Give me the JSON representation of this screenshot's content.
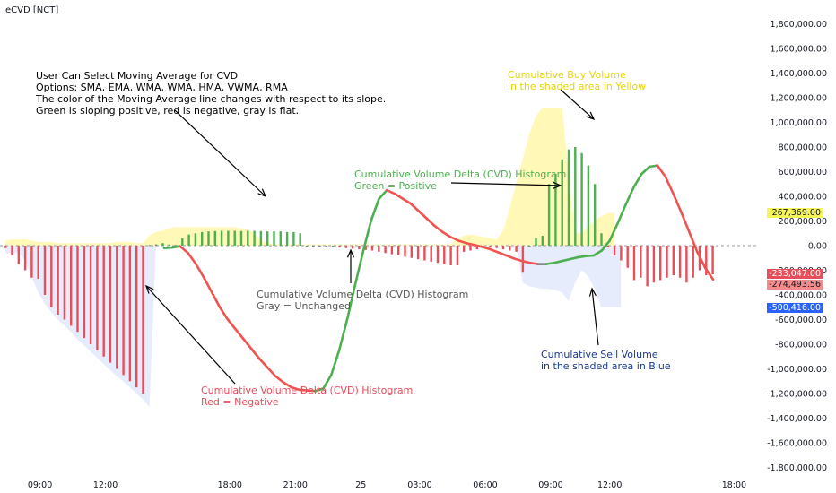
{
  "title": "eCVD [NCT]",
  "chart_data": {
    "type": "bar",
    "title": "eCVD [NCT]",
    "ylim": [
      -1800000,
      1800000
    ],
    "y_ticks": [
      "1,800,000.00",
      "1,600,000.00",
      "1,400,000.00",
      "1,200,000.00",
      "1,000,000.00",
      "800,000.00",
      "600,000.00",
      "400,000.00",
      "200,000.00",
      "0.00",
      "-200,000.00",
      "-400,000.00",
      "-600,000.00",
      "-800,000.00",
      "-1,000,000.00",
      "-1,200,000.00",
      "-1,400,000.00",
      "-1,600,000.00",
      "-1,800,000.00"
    ],
    "y_tick_values": [
      1800000,
      1600000,
      1400000,
      1200000,
      1000000,
      800000,
      600000,
      400000,
      200000,
      0,
      -200000,
      -400000,
      -600000,
      -800000,
      -1000000,
      -1200000,
      -1400000,
      -1600000,
      -1800000
    ],
    "x_ticks": [
      {
        "label": "09:00",
        "bar": 2
      },
      {
        "label": "12:00",
        "bar": 12
      },
      {
        "label": "18:00",
        "bar": 31
      },
      {
        "label": "21:00",
        "bar": 41
      },
      {
        "label": "25",
        "bar": 51
      },
      {
        "label": "03:00",
        "bar": 60
      },
      {
        "label": "06:00",
        "bar": 70
      },
      {
        "label": "09:00",
        "bar": 80
      },
      {
        "label": "12:00",
        "bar": 89
      },
      {
        "label": "18:00",
        "bar": 108
      }
    ],
    "histogram": {
      "values": [
        -20000,
        -80000,
        -150000,
        -200000,
        -260000,
        -270000,
        -400000,
        -500000,
        -560000,
        -600000,
        -650000,
        -700000,
        -750000,
        -800000,
        -850000,
        -900000,
        -950000,
        -1000000,
        -1050000,
        -1100000,
        -1150000,
        -1200000,
        5000,
        10000,
        20000,
        10000,
        5000,
        60000,
        90000,
        100000,
        110000,
        115000,
        118000,
        120000,
        120000,
        120000,
        118000,
        120000,
        120000,
        118000,
        115000,
        115000,
        115000,
        110000,
        110000,
        100000,
        0,
        -5000,
        -5000,
        -8000,
        -10000,
        -15000,
        -20000,
        -25000,
        -30000,
        -35000,
        -40000,
        -50000,
        -60000,
        -70000,
        -80000,
        -90000,
        -100000,
        -110000,
        -120000,
        -130000,
        -140000,
        -150000,
        -160000,
        -160000,
        -50000,
        -40000,
        -30000,
        -20000,
        -15000,
        -20000,
        -30000,
        -40000,
        -50000,
        -220000,
        0,
        60000,
        80000,
        500000,
        580000,
        700000,
        780000,
        800000,
        750000,
        650000,
        500000,
        100000,
        -10000,
        -80000,
        -120000,
        -180000,
        -280000,
        -260000,
        -330000,
        -300000,
        -280000,
        -260000,
        -240000,
        -260000,
        -300000,
        -260000,
        -200000,
        -240000,
        -233047
      ],
      "colors": {
        "positive": "#4caf50",
        "negative": "#e84d5a",
        "unchanged": "#787b86"
      }
    },
    "ma_line": {
      "values": [
        -20000,
        -15000,
        -5000,
        -60000,
        -150000,
        -260000,
        -380000,
        -500000,
        -600000,
        -680000,
        -760000,
        -840000,
        -920000,
        -990000,
        -1060000,
        -1110000,
        -1150000,
        -1170000,
        -1175000,
        -1180000,
        -1160000,
        -1050000,
        -850000,
        -600000,
        -320000,
        -50000,
        200000,
        380000,
        450000,
        420000,
        380000,
        340000,
        280000,
        220000,
        160000,
        110000,
        70000,
        40000,
        20000,
        5000,
        -10000,
        -30000,
        -55000,
        -80000,
        -105000,
        -125000,
        -140000,
        -150000,
        -150000,
        -140000,
        -125000,
        -110000,
        -95000,
        -85000,
        -80000,
        -40000,
        40000,
        180000,
        330000,
        470000,
        580000,
        640000,
        650000,
        560000,
        420000,
        270000,
        110000,
        -50000,
        -180000,
        -274494
      ],
      "start_bar": 40,
      "colors": {
        "up": "#4caf50",
        "down": "#f05350",
        "flat": "#787b86"
      }
    },
    "buy_volume_area": {
      "color": "#fff59d",
      "values": [
        40000,
        50000,
        50000,
        50000,
        40000,
        30000,
        30000,
        30000,
        20000,
        20000,
        20000,
        20000,
        20000,
        20000,
        20000,
        20000,
        20000,
        30000,
        30000,
        30000,
        20000,
        20000,
        80000,
        110000,
        120000,
        140000,
        150000,
        150000,
        150000,
        150000,
        150000,
        150000,
        150000,
        150000,
        150000,
        150000,
        140000,
        130000,
        100000,
        40000,
        20000,
        10000,
        10000,
        10000,
        10000,
        10000,
        10000,
        10000,
        10000,
        10000,
        10000,
        10000,
        10000,
        10000,
        10000,
        10000,
        10000,
        10000,
        10000,
        10000,
        10000,
        10000,
        10000,
        10000,
        10000,
        10000,
        10000,
        10000,
        10000,
        50000,
        80000,
        90000,
        80000,
        70000,
        60000,
        50000,
        120000,
        300000,
        500000,
        700000,
        900000,
        1050000,
        1120000,
        1120000,
        1120000,
        1120000,
        600000,
        100000,
        100000,
        150000,
        200000,
        240000,
        260000,
        267369
      ]
    },
    "sell_volume_area": {
      "color": "#dde6fb",
      "values": [
        -60000,
        -60000,
        -60000,
        -120000,
        -250000,
        -380000,
        -470000,
        -540000,
        -600000,
        -650000,
        -700000,
        -760000,
        -810000,
        -860000,
        -910000,
        -960000,
        -1010000,
        -1060000,
        -1100000,
        -1150000,
        -1200000,
        -1250000,
        -1310000,
        0,
        0,
        0,
        0,
        0,
        0,
        0,
        0,
        0,
        0,
        0,
        0,
        0,
        0,
        0,
        0,
        0,
        0,
        0,
        0,
        0,
        0,
        0,
        0,
        0,
        0,
        0,
        0,
        0,
        0,
        0,
        0,
        0,
        0,
        0,
        0,
        0,
        0,
        0,
        0,
        0,
        0,
        0,
        0,
        0,
        0,
        0,
        0,
        0,
        0,
        0,
        0,
        0,
        0,
        0,
        0,
        -300000,
        -330000,
        -340000,
        -350000,
        -350000,
        -360000,
        -380000,
        -450000,
        -300000,
        -200000,
        -250000,
        -350000,
        -500000,
        -500000,
        -500000,
        -500416
      ]
    },
    "current_values": [
      {
        "label": "267,369.00",
        "value": 267369,
        "bg": "#f5f55a",
        "fg": "#131722"
      },
      {
        "label": "-233,047.00",
        "value": -233047,
        "bg": "#e84d5a",
        "fg": "#ffffff"
      },
      {
        "label": "-274,493.56",
        "value": -274494,
        "bg": "#f58b8b",
        "fg": "#131722"
      },
      {
        "label": "-500,416.00",
        "value": -500416,
        "bg": "#2962ff",
        "fg": "#ffffff"
      }
    ]
  },
  "annotations": {
    "ma_note": {
      "lines": [
        "User Can Select Moving Average for CVD",
        "Options: SMA, EMA, WMA, WMA, HMA, VWMA, RMA",
        "The color of the Moving Average line changes with respect to its slope.",
        "Green is sloping positive, red is negative, gray is flat."
      ],
      "color": "#000000"
    },
    "buy_note": {
      "lines": [
        "Cumulative Buy Volume",
        "in the shaded area in Yellow"
      ],
      "color": "#e8d400"
    },
    "green_note": {
      "lines": [
        "Cumulative Volume Delta (CVD) Histogram",
        "Green = Positive"
      ],
      "color": "#4caf50"
    },
    "gray_note": {
      "lines": [
        "Cumulative Volume Delta (CVD) Histogram",
        "Gray = Unchanged"
      ],
      "color": "#555555"
    },
    "sell_note": {
      "lines": [
        "Cumulative Sell Volume",
        "in the shaded area in Blue"
      ],
      "color": "#1a3a8a"
    },
    "red_note": {
      "lines": [
        "Cumulative Volume Delta (CVD) Histogram",
        "Red = Negative"
      ],
      "color": "#e84d5a"
    }
  }
}
